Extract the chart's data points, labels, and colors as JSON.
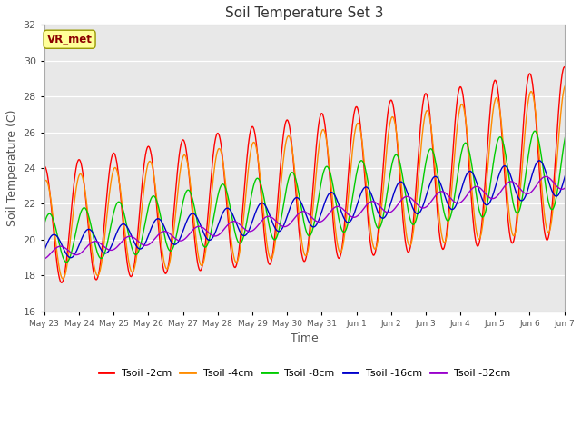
{
  "title": "Soil Temperature Set 3",
  "xlabel": "Time",
  "ylabel": "Soil Temperature (C)",
  "ylim": [
    16,
    32
  ],
  "yticks": [
    16,
    18,
    20,
    22,
    24,
    26,
    28,
    30,
    32
  ],
  "bg_color": "#e8e8e8",
  "fig_color": "#ffffff",
  "annotation_text": "VR_met",
  "annotation_color": "#8b0000",
  "annotation_bg": "#ffff99",
  "series_colors": [
    "#ff0000",
    "#ff8c00",
    "#00cc00",
    "#0000cc",
    "#9900cc"
  ],
  "series_labels": [
    "Tsoil -2cm",
    "Tsoil -4cm",
    "Tsoil -8cm",
    "Tsoil -16cm",
    "Tsoil -32cm"
  ],
  "tick_labels": [
    "May 23",
    "May 24",
    "May 25",
    "May 26",
    "May 27",
    "May 28",
    "May 29",
    "May 30",
    "May 31",
    "Jun 1",
    "Jun 2",
    "Jun 3",
    "Jun 4",
    "Jun 5",
    "Jun 6",
    "Jun 7"
  ],
  "n_days": 16
}
